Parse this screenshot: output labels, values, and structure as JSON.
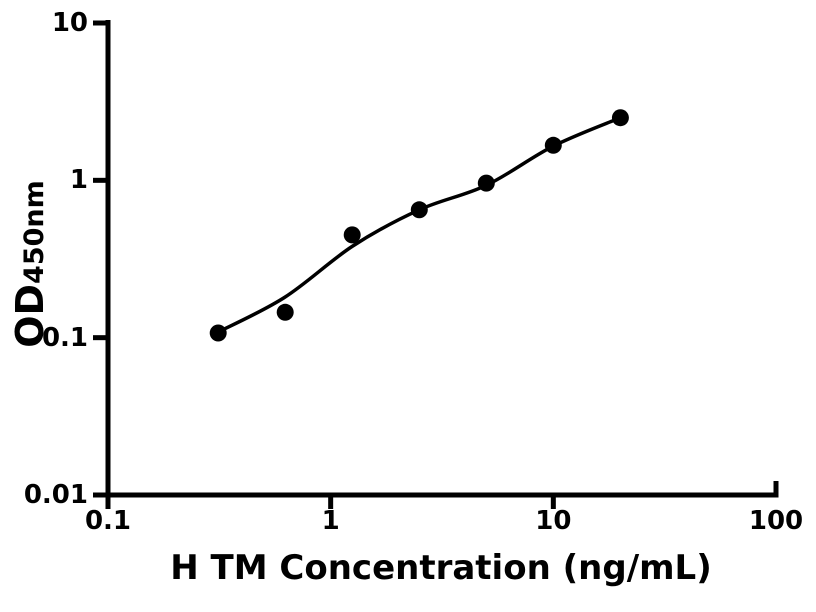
{
  "figure": {
    "background": "#ffffff",
    "axis_color": "#000000"
  },
  "chart_data": {
    "type": "scatter",
    "title": "",
    "xlabel": "H TM Concentration (ng/mL)",
    "ylabel_main": "OD",
    "ylabel_sub": "450nm",
    "x_scale": "log",
    "y_scale": "log",
    "xlim": [
      0.1,
      100
    ],
    "ylim": [
      0.01,
      10
    ],
    "x_ticks": [
      0.1,
      1,
      10,
      100
    ],
    "x_tick_labels": [
      "0.1",
      "1",
      "10",
      "100"
    ],
    "y_ticks": [
      0.01,
      0.1,
      1,
      10
    ],
    "y_tick_labels": [
      "0.01",
      "0.1",
      "1",
      "10"
    ],
    "grid": false,
    "legend": null,
    "series": [
      {
        "name": "standard-points",
        "type": "scatter",
        "marker": "circle",
        "color": "#000000",
        "x": [
          0.3125,
          0.625,
          1.25,
          2.5,
          5,
          10,
          20
        ],
        "y": [
          0.107,
          0.145,
          0.45,
          0.65,
          0.96,
          1.67,
          2.5
        ]
      },
      {
        "name": "fitted-curve",
        "type": "line",
        "color": "#000000",
        "x": [
          0.31,
          0.62,
          1.25,
          2.5,
          5,
          10,
          20
        ],
        "y": [
          0.108,
          0.18,
          0.38,
          0.65,
          0.93,
          1.65,
          2.5
        ]
      }
    ]
  }
}
